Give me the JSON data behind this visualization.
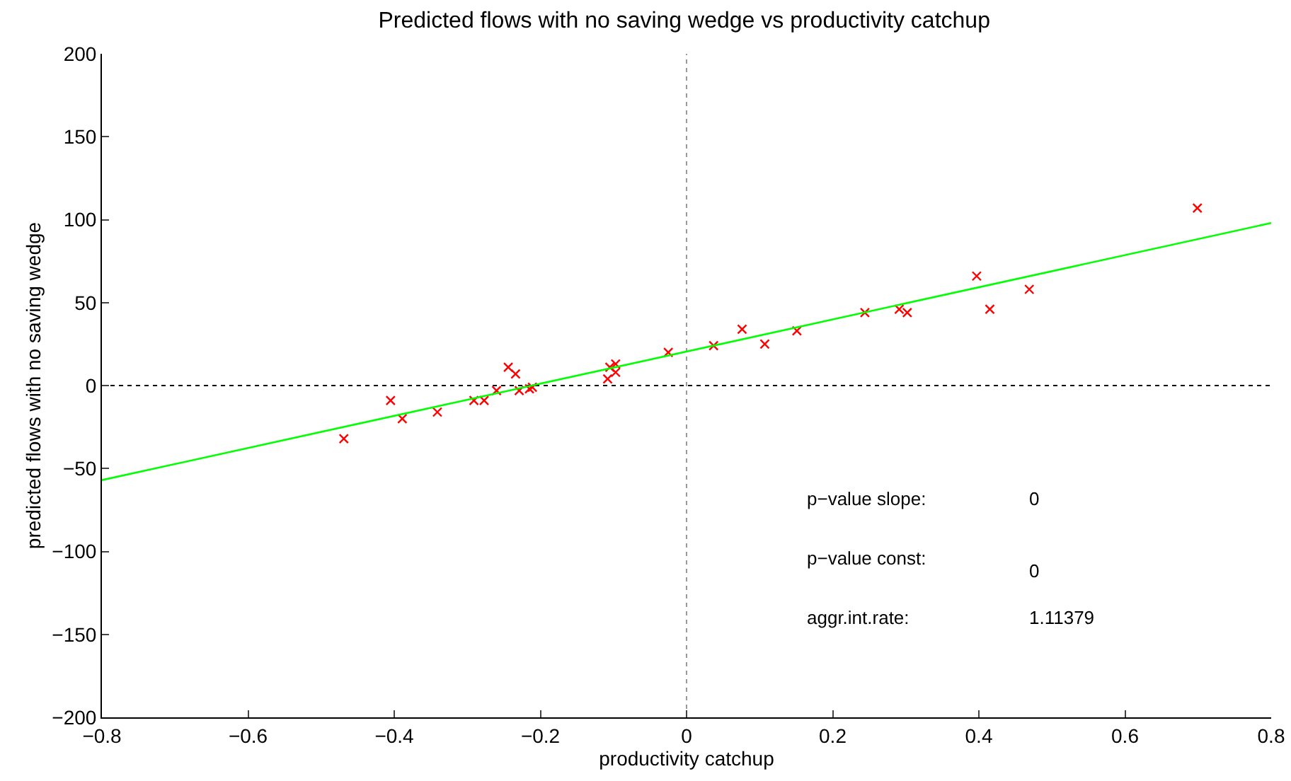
{
  "chart_data": {
    "type": "scatter",
    "title": "Predicted flows with no saving wedge vs productivity catchup",
    "xlabel": "productivity catchup",
    "ylabel": "predicted flows with no saving wedge",
    "xlim": [
      -0.8,
      0.8
    ],
    "xticks": [
      {
        "value": -0.8,
        "label": "−0.8"
      },
      {
        "value": -0.6,
        "label": "−0.6"
      },
      {
        "value": -0.4,
        "label": "−0.4"
      },
      {
        "value": -0.2,
        "label": "−0.2"
      },
      0,
      0.2,
      0.4,
      0.6,
      0.8
    ],
    "ylim": [
      -200,
      200
    ],
    "yticks": [
      {
        "value": -200,
        "label": "−200"
      },
      {
        "value": -150,
        "label": "−150"
      },
      {
        "value": -100,
        "label": "−100"
      },
      {
        "value": -50,
        "label": "−50"
      },
      0,
      50,
      100,
      150,
      200
    ],
    "grid": false,
    "legend": false,
    "marker": "cross",
    "series": [
      {
        "color": "#ff0000",
        "x": [
          -0.469,
          -0.405,
          -0.389,
          -0.341,
          -0.291,
          -0.277,
          -0.26,
          -0.244,
          -0.234,
          -0.229,
          -0.215,
          -0.211,
          -0.108,
          -0.105,
          -0.097,
          -0.097,
          -0.025,
          0.037,
          0.076,
          0.107,
          0.151,
          0.244,
          0.291,
          0.302,
          0.397,
          0.415,
          0.469,
          0.699
        ],
        "values": [
          -32,
          -9,
          -20,
          -16,
          -9,
          -9,
          -3,
          11,
          7,
          -3,
          -2,
          -1,
          4,
          11,
          13,
          8,
          20,
          24,
          34,
          25,
          33,
          44,
          46,
          44,
          66,
          46,
          58,
          107
        ]
      },
      {
        "type": "line",
        "color": "#00ff00",
        "line_style": "solid",
        "marker": "none",
        "x": [
          -0.8,
          0.8
        ],
        "values": [
          -57,
          98
        ]
      }
    ],
    "ref_lines": [
      {
        "axis": "x",
        "value": 0,
        "color": "#999999",
        "line_style": "dotted"
      },
      {
        "axis": "y",
        "value": 0,
        "color": "#000000",
        "line_style": "dotted"
      }
    ],
    "annotations": [
      "p−value slope:",
      "0",
      "p−value const:",
      "0",
      "aggr.int.rate:",
      "1.11379"
    ]
  }
}
